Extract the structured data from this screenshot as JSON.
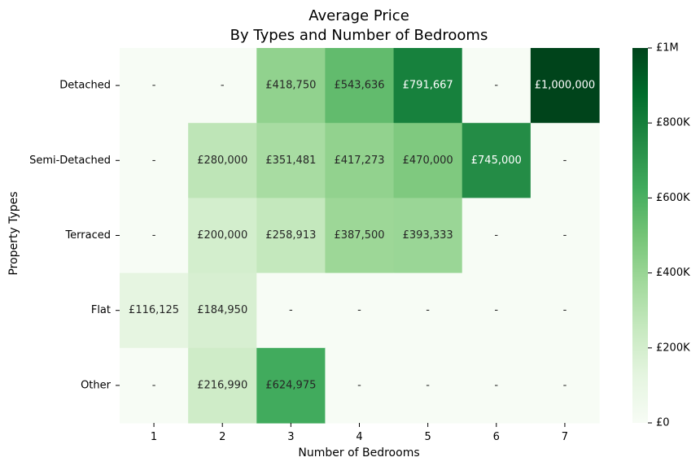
{
  "chart_data": {
    "type": "heatmap",
    "title": "Average Price",
    "subtitle": "By Types and Number of Bedrooms",
    "xlabel": "Number of Bedrooms",
    "ylabel": "Property Types",
    "x_categories": [
      "1",
      "2",
      "3",
      "4",
      "5",
      "6",
      "7"
    ],
    "y_categories": [
      "Detached",
      "Semi-Detached",
      "Terraced",
      "Flat",
      "Other"
    ],
    "values": [
      [
        null,
        null,
        418750,
        543636,
        791667,
        null,
        1000000
      ],
      [
        null,
        280000,
        351481,
        417273,
        470000,
        745000,
        null
      ],
      [
        null,
        200000,
        258913,
        387500,
        393333,
        null,
        null
      ],
      [
        116125,
        184950,
        null,
        null,
        null,
        null,
        null
      ],
      [
        null,
        216990,
        624975,
        null,
        null,
        null,
        null
      ]
    ],
    "cell_labels": [
      [
        "-",
        "-",
        "£418,750",
        "£543,636",
        "£791,667",
        "-",
        "£1,000,000"
      ],
      [
        "-",
        "£280,000",
        "£351,481",
        "£417,273",
        "£470,000",
        "£745,000",
        "-"
      ],
      [
        "-",
        "£200,000",
        "£258,913",
        "£387,500",
        "£393,333",
        "-",
        "-"
      ],
      [
        "£116,125",
        "£184,950",
        "-",
        "-",
        "-",
        "-",
        "-"
      ],
      [
        "-",
        "£216,990",
        "£624,975",
        "-",
        "-",
        "-",
        "-"
      ]
    ],
    "colorbar": {
      "min": 0,
      "max": 1000000,
      "ticks": [
        0,
        200000,
        400000,
        600000,
        800000,
        1000000
      ],
      "tick_labels": [
        "£0",
        "£200K",
        "£400K",
        "£600K",
        "£800K",
        "£1M"
      ]
    },
    "colormap": "Greens",
    "colormap_stops": [
      "#f7fcf5",
      "#e5f5e0",
      "#c7e9c0",
      "#a1d99b",
      "#74c476",
      "#41ab5d",
      "#238b45",
      "#006d2c",
      "#00441b"
    ],
    "grid": false
  }
}
